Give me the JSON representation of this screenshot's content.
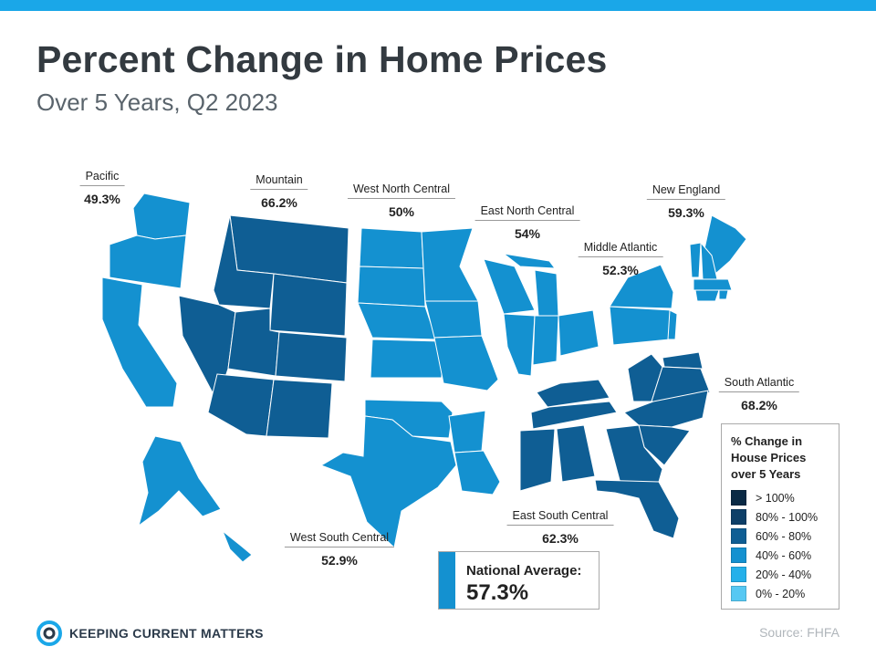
{
  "header": {
    "title": "Percent Change in Home Prices",
    "subtitle": "Over 5 Years, Q2 2023"
  },
  "colors": {
    "accent_bar": "#1aa7e8",
    "scale": [
      "#0a2a45",
      "#0d3f68",
      "#0f5e94",
      "#1491d0",
      "#24b0ea",
      "#56c8f3"
    ],
    "state_border": "#ffffff"
  },
  "regions": [
    {
      "id": "pacific",
      "name": "Pacific",
      "value": "49.3%",
      "bucket": 3
    },
    {
      "id": "mountain",
      "name": "Mountain",
      "value": "66.2%",
      "bucket": 2
    },
    {
      "id": "west-north-central",
      "name": "West North Central",
      "value": "50%",
      "bucket": 3
    },
    {
      "id": "east-north-central",
      "name": "East North Central",
      "value": "54%",
      "bucket": 3
    },
    {
      "id": "middle-atlantic",
      "name": "Middle Atlantic",
      "value": "52.3%",
      "bucket": 3
    },
    {
      "id": "new-england",
      "name": "New England",
      "value": "59.3%",
      "bucket": 3
    },
    {
      "id": "south-atlantic",
      "name": "South Atlantic",
      "value": "68.2%",
      "bucket": 2
    },
    {
      "id": "east-south-central",
      "name": "East South Central",
      "value": "62.3%",
      "bucket": 2
    },
    {
      "id": "west-south-central",
      "name": "West South Central",
      "value": "52.9%",
      "bucket": 3
    }
  ],
  "legend": {
    "title": "% Change in House Prices over 5 Years",
    "items": [
      {
        "label": "> 100%",
        "color": "#0a2a45"
      },
      {
        "label": "80% - 100%",
        "color": "#0d3f68"
      },
      {
        "label": "60% - 80%",
        "color": "#0f5e94"
      },
      {
        "label": "40% - 60%",
        "color": "#1491d0"
      },
      {
        "label": "20% - 40%",
        "color": "#24b0ea"
      },
      {
        "label": "0% - 20%",
        "color": "#56c8f3"
      }
    ]
  },
  "national": {
    "label": "National Average:",
    "value": "57.3%"
  },
  "footer": {
    "logo_text": "KEEPING CURRENT MATTERS",
    "logo_icon": "kcm-swirl-icon",
    "source": "Source: FHFA"
  }
}
